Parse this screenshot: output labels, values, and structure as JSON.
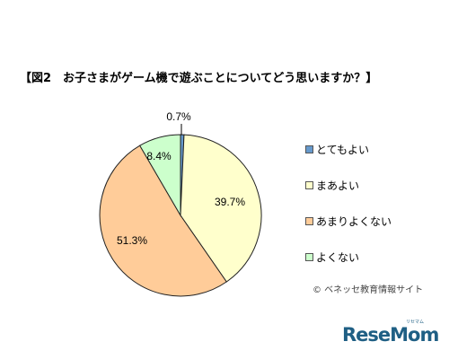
{
  "title": "【図2　お子さまがゲーム機で遊ぶことについてどう思いますか？】",
  "source": "© ベネッセ教育情報サイト",
  "logo": {
    "text": "ReseMom",
    "small_text": "リセマム"
  },
  "chart_data": {
    "type": "pie",
    "title": "【図2　お子さまがゲーム機で遊ぶことについてどう思いますか？】",
    "categories": [
      "とてもよい",
      "まあよい",
      "あまりよくない",
      "よくない"
    ],
    "values": [
      0.7,
      39.7,
      51.3,
      8.4
    ],
    "labels": [
      "0.7%",
      "39.7%",
      "51.3%",
      "8.4%"
    ],
    "colors": [
      "#6699cc",
      "#ffffcc",
      "#ffcc99",
      "#ccffcc"
    ],
    "start": "12 o'clock, clockwise",
    "legend_position": "right"
  }
}
